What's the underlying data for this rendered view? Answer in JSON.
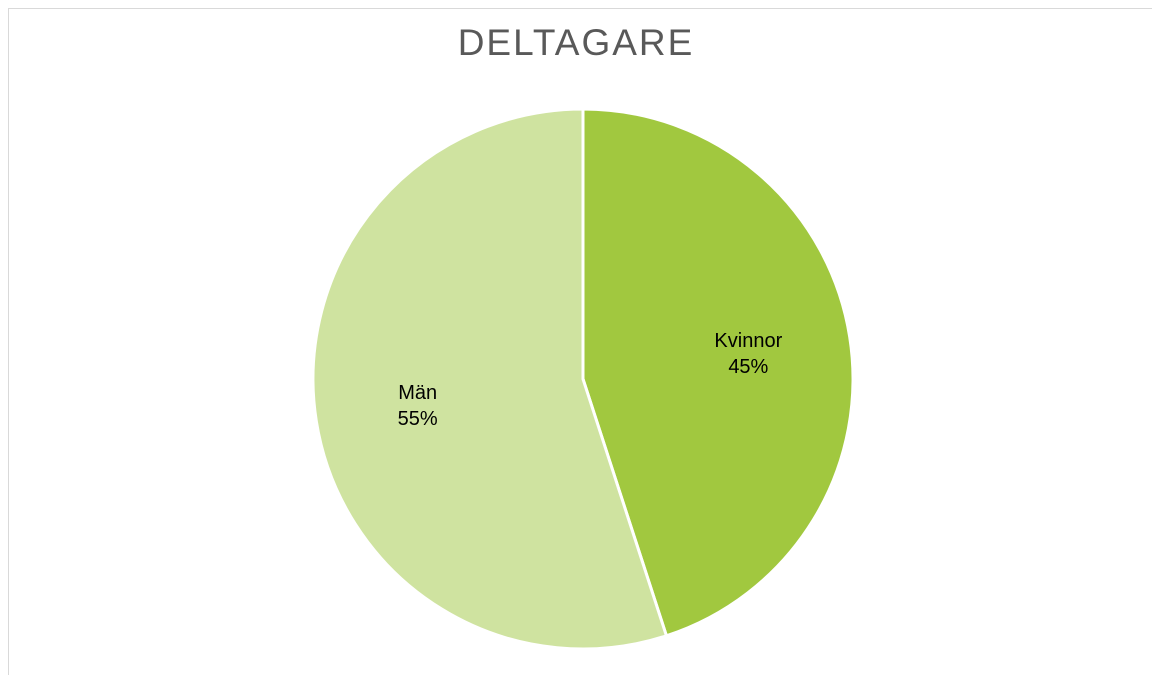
{
  "chart_data": {
    "type": "pie",
    "title": "DELTAGARE",
    "slices": [
      {
        "name": "Kvinnor",
        "value": 45,
        "label": "45%",
        "color": "#a1c83f"
      },
      {
        "name": "Män",
        "value": 55,
        "label": "55%",
        "color": "#cfe3a0"
      }
    ]
  }
}
